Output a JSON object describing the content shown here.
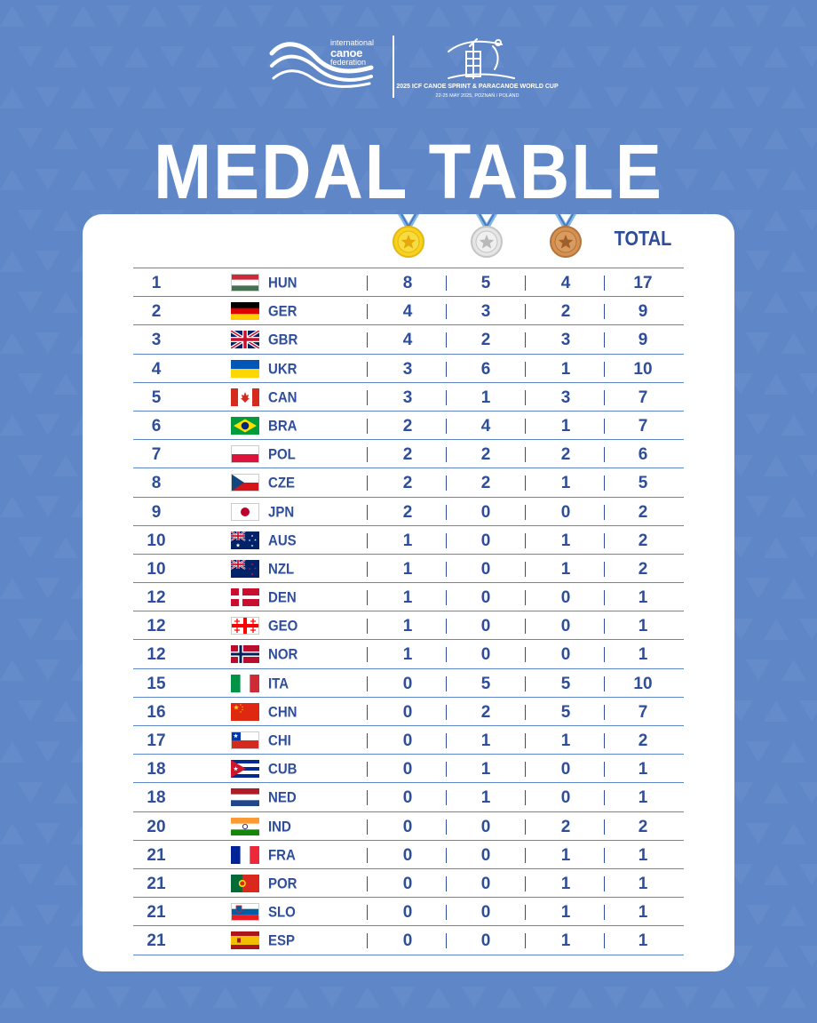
{
  "header": {
    "icf_logo_lines": [
      "international",
      "canoe",
      "federation"
    ],
    "event_title": "2025 ICF CANOE SPRINT & PARACANOE WORLD CUP",
    "event_subtitle": "22-25 MAY 2025, POZNAŃ / POLAND"
  },
  "title": "MEDAL TABLE",
  "columns": {
    "gold_icon": "gold-medal-icon",
    "silver_icon": "silver-medal-icon",
    "bronze_icon": "bronze-medal-icon",
    "total": "TOTAL"
  },
  "colors": {
    "background": "#5f86c7",
    "text": "#2e4e9c",
    "gold": "#f5d31f",
    "silver": "#d7d7d7",
    "bronze": "#c98a4a",
    "ribbon": "#7fb6e8"
  },
  "rows": [
    {
      "rank": "1",
      "country": "HUN",
      "gold": "8",
      "silver": "5",
      "bronze": "4",
      "total": "17"
    },
    {
      "rank": "2",
      "country": "GER",
      "gold": "4",
      "silver": "3",
      "bronze": "2",
      "total": "9"
    },
    {
      "rank": "3",
      "country": "GBR",
      "gold": "4",
      "silver": "2",
      "bronze": "3",
      "total": "9"
    },
    {
      "rank": "4",
      "country": "UKR",
      "gold": "3",
      "silver": "6",
      "bronze": "1",
      "total": "10"
    },
    {
      "rank": "5",
      "country": "CAN",
      "gold": "3",
      "silver": "1",
      "bronze": "3",
      "total": "7"
    },
    {
      "rank": "6",
      "country": "BRA",
      "gold": "2",
      "silver": "4",
      "bronze": "1",
      "total": "7"
    },
    {
      "rank": "7",
      "country": "POL",
      "gold": "2",
      "silver": "2",
      "bronze": "2",
      "total": "6"
    },
    {
      "rank": "8",
      "country": "CZE",
      "gold": "2",
      "silver": "2",
      "bronze": "1",
      "total": "5"
    },
    {
      "rank": "9",
      "country": "JPN",
      "gold": "2",
      "silver": "0",
      "bronze": "0",
      "total": "2"
    },
    {
      "rank": "10",
      "country": "AUS",
      "gold": "1",
      "silver": "0",
      "bronze": "1",
      "total": "2"
    },
    {
      "rank": "10",
      "country": "NZL",
      "gold": "1",
      "silver": "0",
      "bronze": "1",
      "total": "2"
    },
    {
      "rank": "12",
      "country": "DEN",
      "gold": "1",
      "silver": "0",
      "bronze": "0",
      "total": "1"
    },
    {
      "rank": "12",
      "country": "GEO",
      "gold": "1",
      "silver": "0",
      "bronze": "0",
      "total": "1"
    },
    {
      "rank": "12",
      "country": "NOR",
      "gold": "1",
      "silver": "0",
      "bronze": "0",
      "total": "1"
    },
    {
      "rank": "15",
      "country": "ITA",
      "gold": "0",
      "silver": "5",
      "bronze": "5",
      "total": "10"
    },
    {
      "rank": "16",
      "country": "CHN",
      "gold": "0",
      "silver": "2",
      "bronze": "5",
      "total": "7"
    },
    {
      "rank": "17",
      "country": "CHI",
      "gold": "0",
      "silver": "1",
      "bronze": "1",
      "total": "2"
    },
    {
      "rank": "18",
      "country": "CUB",
      "gold": "0",
      "silver": "1",
      "bronze": "0",
      "total": "1"
    },
    {
      "rank": "18",
      "country": "NED",
      "gold": "0",
      "silver": "1",
      "bronze": "0",
      "total": "1"
    },
    {
      "rank": "20",
      "country": "IND",
      "gold": "0",
      "silver": "0",
      "bronze": "2",
      "total": "2"
    },
    {
      "rank": "21",
      "country": "FRA",
      "gold": "0",
      "silver": "0",
      "bronze": "1",
      "total": "1"
    },
    {
      "rank": "21",
      "country": "POR",
      "gold": "0",
      "silver": "0",
      "bronze": "1",
      "total": "1"
    },
    {
      "rank": "21",
      "country": "SLO",
      "gold": "0",
      "silver": "0",
      "bronze": "1",
      "total": "1"
    },
    {
      "rank": "21",
      "country": "ESP",
      "gold": "0",
      "silver": "0",
      "bronze": "1",
      "total": "1"
    }
  ]
}
